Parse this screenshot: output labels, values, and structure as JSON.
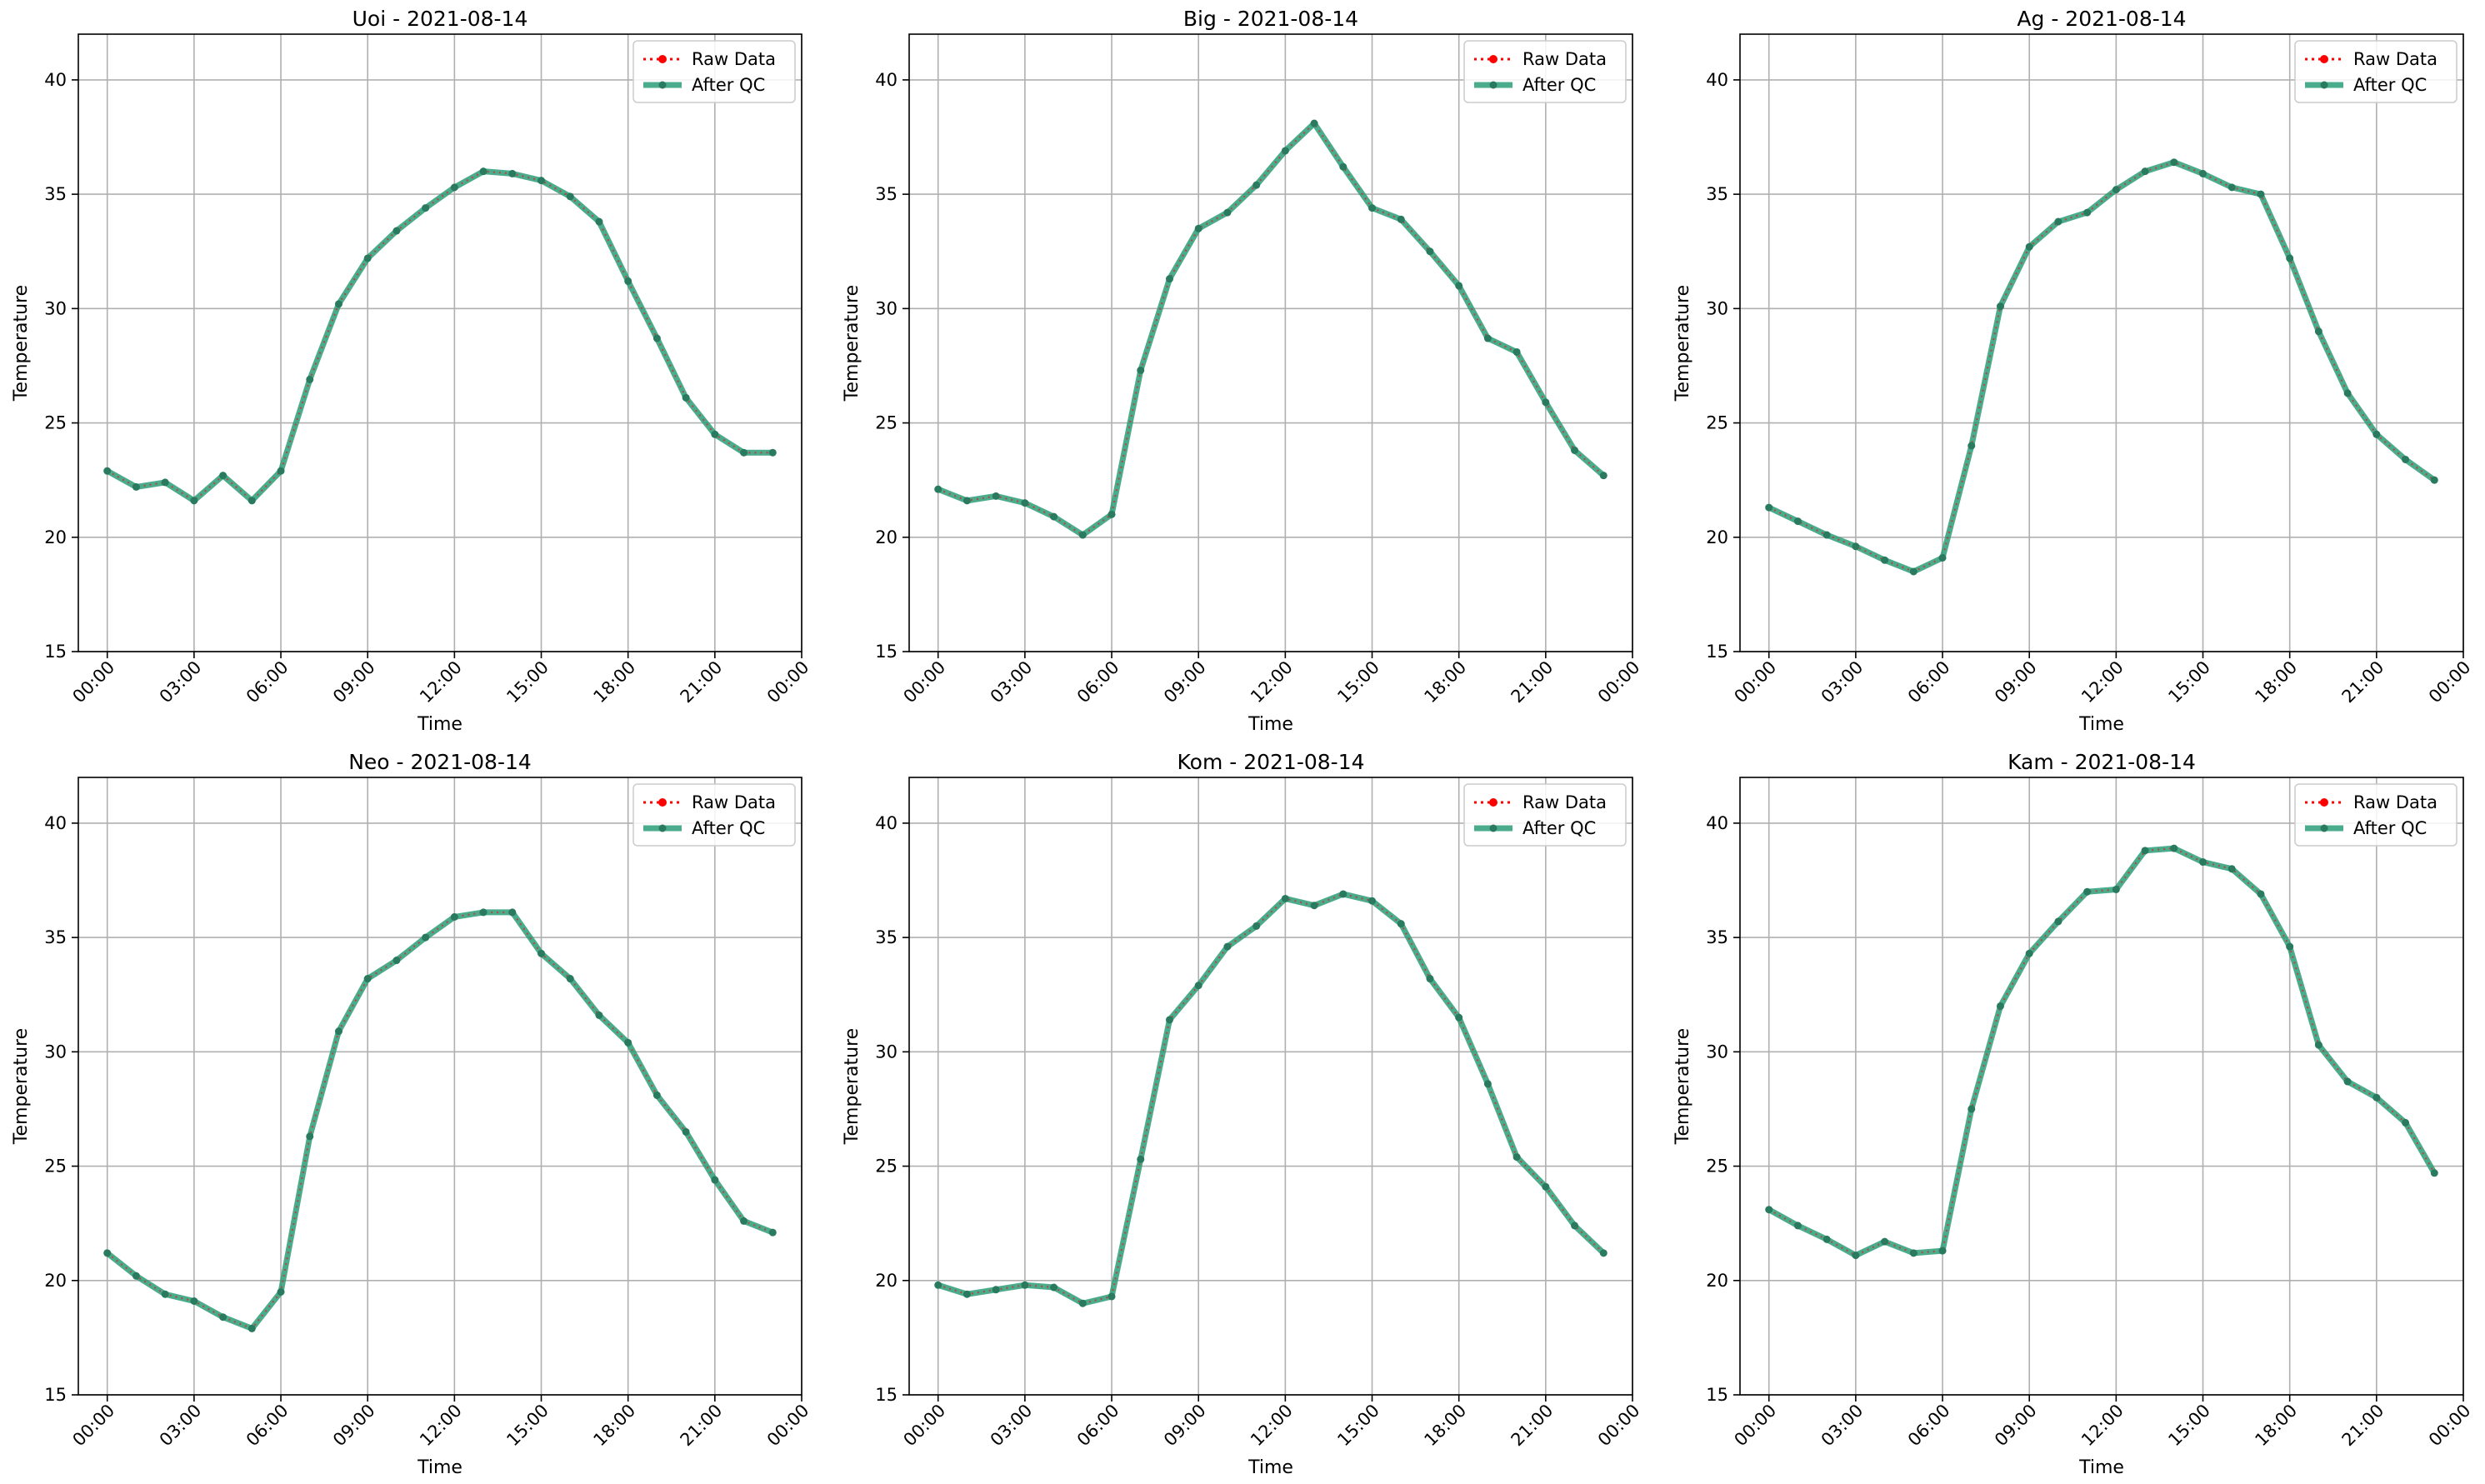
{
  "figure": {
    "xlabel": "Time",
    "ylabel": "Temperature",
    "ylim": [
      15,
      42
    ],
    "yticks": [
      15,
      20,
      25,
      30,
      35,
      40
    ],
    "xlim": [
      -1,
      24
    ],
    "xticks": [
      0,
      3,
      6,
      9,
      12,
      15,
      18,
      21,
      24
    ],
    "xticklabels": [
      "00:00",
      "03:00",
      "06:00",
      "09:00",
      "12:00",
      "15:00",
      "18:00",
      "21:00",
      "00:00"
    ],
    "legend": [
      "Raw Data",
      "After QC"
    ],
    "colors": {
      "raw": "#ff0000",
      "qc": "#2a9d78",
      "grid": "#b0b0b0"
    }
  },
  "chart_data": [
    {
      "type": "line",
      "title": "Uoi - 2021-08-14",
      "xlabel": "Time",
      "ylabel": "Temperature",
      "x": [
        0,
        1,
        2,
        3,
        4,
        5,
        6,
        7,
        8,
        9,
        10,
        11,
        12,
        13,
        14,
        15,
        16,
        17,
        18,
        19,
        20,
        21,
        22,
        23
      ],
      "series": [
        {
          "name": "Raw Data",
          "values": [
            22.9,
            22.2,
            22.4,
            21.6,
            22.7,
            21.6,
            22.9,
            26.9,
            30.2,
            32.2,
            33.4,
            34.4,
            35.3,
            36.0,
            35.9,
            35.6,
            34.9,
            33.8,
            31.2,
            28.7,
            26.1,
            24.5,
            23.7,
            23.7
          ]
        },
        {
          "name": "After QC",
          "values": [
            22.9,
            22.2,
            22.4,
            21.6,
            22.7,
            21.6,
            22.9,
            26.9,
            30.2,
            32.2,
            33.4,
            34.4,
            35.3,
            36.0,
            35.9,
            35.6,
            34.9,
            33.8,
            31.2,
            28.7,
            26.1,
            24.5,
            23.7,
            23.7
          ]
        }
      ],
      "ylim": [
        15,
        42
      ],
      "legend_position": "upper-right",
      "grid": true
    },
    {
      "type": "line",
      "title": "Big - 2021-08-14",
      "xlabel": "Time",
      "ylabel": "Temperature",
      "x": [
        0,
        1,
        2,
        3,
        4,
        5,
        6,
        7,
        8,
        9,
        10,
        11,
        12,
        13,
        14,
        15,
        16,
        17,
        18,
        19,
        20,
        21,
        22,
        23
      ],
      "series": [
        {
          "name": "Raw Data",
          "values": [
            22.1,
            21.6,
            21.8,
            21.5,
            20.9,
            20.1,
            21.0,
            27.3,
            31.3,
            33.5,
            34.2,
            35.4,
            36.9,
            38.1,
            36.2,
            34.4,
            33.9,
            32.5,
            31.0,
            28.7,
            28.1,
            25.9,
            23.8,
            22.7
          ]
        },
        {
          "name": "After QC",
          "values": [
            22.1,
            21.6,
            21.8,
            21.5,
            20.9,
            20.1,
            21.0,
            27.3,
            31.3,
            33.5,
            34.2,
            35.4,
            36.9,
            38.1,
            36.2,
            34.4,
            33.9,
            32.5,
            31.0,
            28.7,
            28.1,
            25.9,
            23.8,
            22.7
          ]
        }
      ],
      "ylim": [
        15,
        42
      ],
      "legend_position": "upper-right",
      "grid": true
    },
    {
      "type": "line",
      "title": "Ag - 2021-08-14",
      "xlabel": "Time",
      "ylabel": "Temperature",
      "x": [
        0,
        1,
        2,
        3,
        4,
        5,
        6,
        7,
        8,
        9,
        10,
        11,
        12,
        13,
        14,
        15,
        16,
        17,
        18,
        19,
        20,
        21,
        22,
        23
      ],
      "series": [
        {
          "name": "Raw Data",
          "values": [
            21.3,
            20.7,
            20.1,
            19.6,
            19.0,
            18.5,
            19.1,
            24.0,
            30.1,
            32.7,
            33.8,
            34.2,
            35.2,
            36.0,
            36.4,
            35.9,
            35.3,
            35.0,
            32.2,
            29.0,
            26.3,
            24.5,
            23.4,
            22.5
          ]
        },
        {
          "name": "After QC",
          "values": [
            21.3,
            20.7,
            20.1,
            19.6,
            19.0,
            18.5,
            19.1,
            24.0,
            30.1,
            32.7,
            33.8,
            34.2,
            35.2,
            36.0,
            36.4,
            35.9,
            35.3,
            35.0,
            32.2,
            29.0,
            26.3,
            24.5,
            23.4,
            22.5
          ]
        }
      ],
      "ylim": [
        15,
        42
      ],
      "legend_position": "upper-right",
      "grid": true
    },
    {
      "type": "line",
      "title": "Neo - 2021-08-14",
      "xlabel": "Time",
      "ylabel": "Temperature",
      "x": [
        0,
        1,
        2,
        3,
        4,
        5,
        6,
        7,
        8,
        9,
        10,
        11,
        12,
        13,
        14,
        15,
        16,
        17,
        18,
        19,
        20,
        21,
        22,
        23
      ],
      "series": [
        {
          "name": "Raw Data",
          "values": [
            21.2,
            20.2,
            19.4,
            19.1,
            18.4,
            17.9,
            19.5,
            26.3,
            30.9,
            33.2,
            34.0,
            35.0,
            35.9,
            36.1,
            36.1,
            34.3,
            33.2,
            31.6,
            30.4,
            28.1,
            26.5,
            24.4,
            22.6,
            22.1
          ]
        },
        {
          "name": "After QC",
          "values": [
            21.2,
            20.2,
            19.4,
            19.1,
            18.4,
            17.9,
            19.5,
            26.3,
            30.9,
            33.2,
            34.0,
            35.0,
            35.9,
            36.1,
            36.1,
            34.3,
            33.2,
            31.6,
            30.4,
            28.1,
            26.5,
            24.4,
            22.6,
            22.1
          ]
        }
      ],
      "ylim": [
        15,
        42
      ],
      "legend_position": "upper-right",
      "grid": true
    },
    {
      "type": "line",
      "title": "Kom - 2021-08-14",
      "xlabel": "Time",
      "ylabel": "Temperature",
      "x": [
        0,
        1,
        2,
        3,
        4,
        5,
        6,
        7,
        8,
        9,
        10,
        11,
        12,
        13,
        14,
        15,
        16,
        17,
        18,
        19,
        20,
        21,
        22,
        23
      ],
      "series": [
        {
          "name": "Raw Data",
          "values": [
            19.8,
            19.4,
            19.6,
            19.8,
            19.7,
            19.0,
            19.3,
            25.3,
            31.4,
            32.9,
            34.6,
            35.5,
            36.7,
            36.4,
            36.9,
            36.6,
            35.6,
            33.2,
            31.5,
            28.6,
            25.4,
            24.1,
            22.4,
            21.2
          ]
        },
        {
          "name": "After QC",
          "values": [
            19.8,
            19.4,
            19.6,
            19.8,
            19.7,
            19.0,
            19.3,
            25.3,
            31.4,
            32.9,
            34.6,
            35.5,
            36.7,
            36.4,
            36.9,
            36.6,
            35.6,
            33.2,
            31.5,
            28.6,
            25.4,
            24.1,
            22.4,
            21.2
          ]
        }
      ],
      "ylim": [
        15,
        42
      ],
      "legend_position": "upper-right",
      "grid": true
    },
    {
      "type": "line",
      "title": "Kam - 2021-08-14",
      "xlabel": "Time",
      "ylabel": "Temperature",
      "x": [
        0,
        1,
        2,
        3,
        4,
        5,
        6,
        7,
        8,
        9,
        10,
        11,
        12,
        13,
        14,
        15,
        16,
        17,
        18,
        19,
        20,
        21,
        22,
        23
      ],
      "series": [
        {
          "name": "Raw Data",
          "values": [
            23.1,
            22.4,
            21.8,
            21.1,
            21.7,
            21.2,
            21.3,
            27.5,
            32.0,
            34.3,
            35.7,
            37.0,
            37.1,
            38.8,
            38.9,
            38.3,
            38.0,
            36.9,
            34.6,
            30.3,
            28.7,
            28.0,
            26.9,
            24.7
          ]
        },
        {
          "name": "After QC",
          "values": [
            23.1,
            22.4,
            21.8,
            21.1,
            21.7,
            21.2,
            21.3,
            27.5,
            32.0,
            34.3,
            35.7,
            37.0,
            37.1,
            38.8,
            38.9,
            38.3,
            38.0,
            36.9,
            34.6,
            30.3,
            28.7,
            28.0,
            26.9,
            24.7
          ]
        }
      ],
      "ylim": [
        15,
        42
      ],
      "legend_position": "upper-right",
      "grid": true
    }
  ]
}
